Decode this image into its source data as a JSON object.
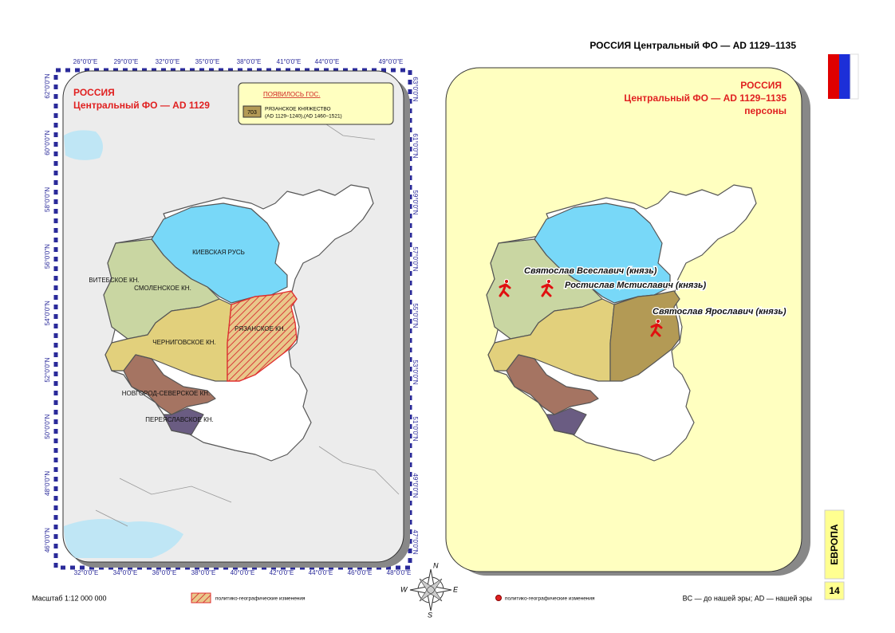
{
  "header": {
    "title": "РОССИЯ Центральный ФО — AD 1129–1135"
  },
  "left_map": {
    "title": "РОССИЯ",
    "subtitle": "Центральный ФО — AD 1129",
    "legend": {
      "heading": "ПОЯВИЛОСЬ ГОС.",
      "code": "703",
      "name": "РЯЗАНСКОЕ КНЯЖЕСТВО",
      "period": "(AD 1129–1240),(AD 1460–1521)"
    },
    "regions": [
      "КИЕВСКАЯ РУСЬ",
      "ВИТЕБСКОЕ КН.",
      "СМОЛЕНСКОЕ КН.",
      "РЯЗАНСКОЕ КН.",
      "ЧЕРНИГОВСКОЕ КН.",
      "НОВГОРОД-СЕВЕРСКОЕ КН.",
      "ПЕРЕЯСЛАВСКОЕ КН."
    ],
    "lon_top": [
      "26°0'0\"E",
      "29°0'0\"E",
      "32°0'0\"E",
      "35°0'0\"E",
      "38°0'0\"E",
      "41°0'0\"E",
      "44°0'0\"E",
      "49°0'0\"E"
    ],
    "lon_bottom": [
      "32°0'0\"E",
      "34°0'0\"E",
      "36°0'0\"E",
      "38°0'0\"E",
      "40°0'0\"E",
      "42°0'0\"E",
      "44°0'0\"E",
      "46°0'0\"E",
      "48°0'0\"E"
    ],
    "lat_left": [
      "62°0'0\"N",
      "60°0'0\"N",
      "58°0'0\"N",
      "56°0'0\"N",
      "54°0'0\"N",
      "52°0'0\"N",
      "50°0'0\"N",
      "48°0'0\"N",
      "46°0'0\"N"
    ],
    "lat_right": [
      "63°0'0\"N",
      "61°0'0\"N",
      "59°0'0\"N",
      "57°0'0\"N",
      "55°0'0\"N",
      "53°0'0\"N",
      "51°0'0\"N",
      "49°0'0\"N",
      "47°0'0\"N"
    ]
  },
  "right_map": {
    "title": "РОССИЯ",
    "subtitle": "Центральный ФО — AD 1129–1135",
    "note": "персоны",
    "persons": [
      "Святослав Всеславич (князь)",
      "Ростислав Мстиславич (князь)",
      "Святослав Ярославич (князь)"
    ]
  },
  "compass": [
    "N",
    "W",
    "E",
    "S"
  ],
  "footer": {
    "scale": "Масштаб 1:12 000 000",
    "legend_hatch": "политико-географические изменения",
    "legend_dot": "политико-географические изменения",
    "era_note": "BC — до нашей эры; AD — нашей эры"
  },
  "side": {
    "region": "ЕВРОПА",
    "page": "14"
  }
}
